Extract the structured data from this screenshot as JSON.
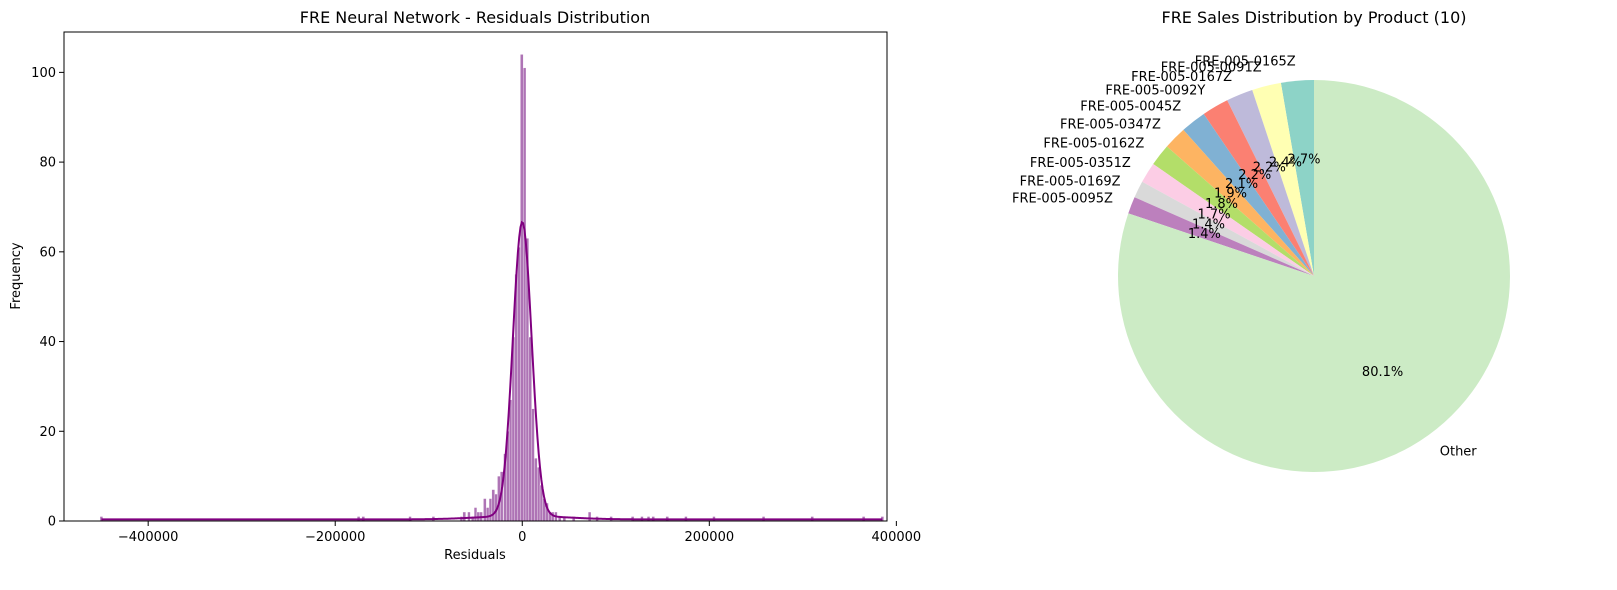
{
  "chart_data": [
    {
      "type": "histogram",
      "title": "FRE Neural Network - Residuals Distribution",
      "xlabel": "Residuals",
      "ylabel": "Frequency",
      "xlim": [
        -490000,
        390000
      ],
      "ylim": [
        0,
        109
      ],
      "xticks": [
        -400000,
        -200000,
        0,
        200000,
        400000
      ],
      "xtick_labels": [
        "−400000",
        "−200000",
        "0",
        "200000",
        "400000"
      ],
      "yticks": [
        0,
        20,
        40,
        60,
        80,
        100
      ],
      "ytick_labels": [
        "0",
        "20",
        "40",
        "60",
        "80",
        "100"
      ],
      "grid": false,
      "bar_color": "#a05ca8",
      "kde_color": "#800080",
      "bins": [
        {
          "x": -450000,
          "count": 1
        },
        {
          "x": -175000,
          "count": 1
        },
        {
          "x": -170000,
          "count": 1
        },
        {
          "x": -120000,
          "count": 1
        },
        {
          "x": -95000,
          "count": 1
        },
        {
          "x": -65000,
          "count": 1
        },
        {
          "x": -62000,
          "count": 2
        },
        {
          "x": -57000,
          "count": 2
        },
        {
          "x": -53000,
          "count": 1
        },
        {
          "x": -50000,
          "count": 3
        },
        {
          "x": -47000,
          "count": 2
        },
        {
          "x": -44000,
          "count": 2
        },
        {
          "x": -40000,
          "count": 5
        },
        {
          "x": -37000,
          "count": 3
        },
        {
          "x": -34000,
          "count": 5
        },
        {
          "x": -31000,
          "count": 7
        },
        {
          "x": -28000,
          "count": 6
        },
        {
          "x": -25000,
          "count": 10
        },
        {
          "x": -22000,
          "count": 11
        },
        {
          "x": -18500,
          "count": 15
        },
        {
          "x": -15500,
          "count": 20
        },
        {
          "x": -12500,
          "count": 27
        },
        {
          "x": -9500,
          "count": 41
        },
        {
          "x": -6500,
          "count": 55
        },
        {
          "x": -3500,
          "count": 61
        },
        {
          "x": -500,
          "count": 104
        },
        {
          "x": 2500,
          "count": 101
        },
        {
          "x": 5500,
          "count": 63
        },
        {
          "x": 8500,
          "count": 41
        },
        {
          "x": 11500,
          "count": 25
        },
        {
          "x": 14500,
          "count": 14
        },
        {
          "x": 17500,
          "count": 12
        },
        {
          "x": 20500,
          "count": 8
        },
        {
          "x": 23500,
          "count": 5
        },
        {
          "x": 26500,
          "count": 4
        },
        {
          "x": 29500,
          "count": 2
        },
        {
          "x": 32500,
          "count": 2
        },
        {
          "x": 36000,
          "count": 2
        },
        {
          "x": 40000,
          "count": 1
        },
        {
          "x": 45000,
          "count": 1
        },
        {
          "x": 55000,
          "count": 1
        },
        {
          "x": 72000,
          "count": 2
        },
        {
          "x": 80000,
          "count": 1
        },
        {
          "x": 95000,
          "count": 1
        },
        {
          "x": 118000,
          "count": 1
        },
        {
          "x": 128000,
          "count": 1
        },
        {
          "x": 135000,
          "count": 1
        },
        {
          "x": 140000,
          "count": 1
        },
        {
          "x": 155000,
          "count": 1
        },
        {
          "x": 175000,
          "count": 1
        },
        {
          "x": 205000,
          "count": 1
        },
        {
          "x": 258000,
          "count": 1
        },
        {
          "x": 310000,
          "count": 1
        },
        {
          "x": 365000,
          "count": 1
        },
        {
          "x": 385000,
          "count": 1
        }
      ],
      "bin_width": 3000,
      "kde_peak": 65.5,
      "kde_sigma": 10000
    },
    {
      "type": "pie",
      "title": "FRE Sales Distribution by Product (10)",
      "start_angle_deg": 90,
      "direction": "counterclockwise",
      "slices": [
        {
          "label": "FRE-005-0165Z",
          "value": 2.7,
          "pct_label": "2.7%",
          "color": "#8dd3c7"
        },
        {
          "label": "FRE-005-0091Z",
          "value": 2.4,
          "pct_label": "2.4%",
          "color": "#ffffb3"
        },
        {
          "label": "FRE-005-0167Z",
          "value": 2.2,
          "pct_label": "2.2%",
          "color": "#bebada"
        },
        {
          "label": "FRE-005-0092Y",
          "value": 2.2,
          "pct_label": "2.2%",
          "color": "#fb8072"
        },
        {
          "label": "FRE-005-0045Z",
          "value": 2.1,
          "pct_label": "2.1%",
          "color": "#80b1d3"
        },
        {
          "label": "FRE-005-0347Z",
          "value": 1.9,
          "pct_label": "1.9%",
          "color": "#fdb462"
        },
        {
          "label": "FRE-005-0162Z",
          "value": 1.8,
          "pct_label": "1.8%",
          "color": "#b3de69"
        },
        {
          "label": "FRE-005-0351Z",
          "value": 1.7,
          "pct_label": "1.7%",
          "color": "#fccde5"
        },
        {
          "label": "FRE-005-0169Z",
          "value": 1.4,
          "pct_label": "1.4%",
          "color": "#d9d9d9"
        },
        {
          "label": "FRE-005-0095Z",
          "value": 1.4,
          "pct_label": "1.4%",
          "color": "#bc80bd"
        },
        {
          "label": "Other",
          "value": 80.1,
          "pct_label": "80.1%",
          "color": "#ccebc5"
        }
      ]
    }
  ]
}
